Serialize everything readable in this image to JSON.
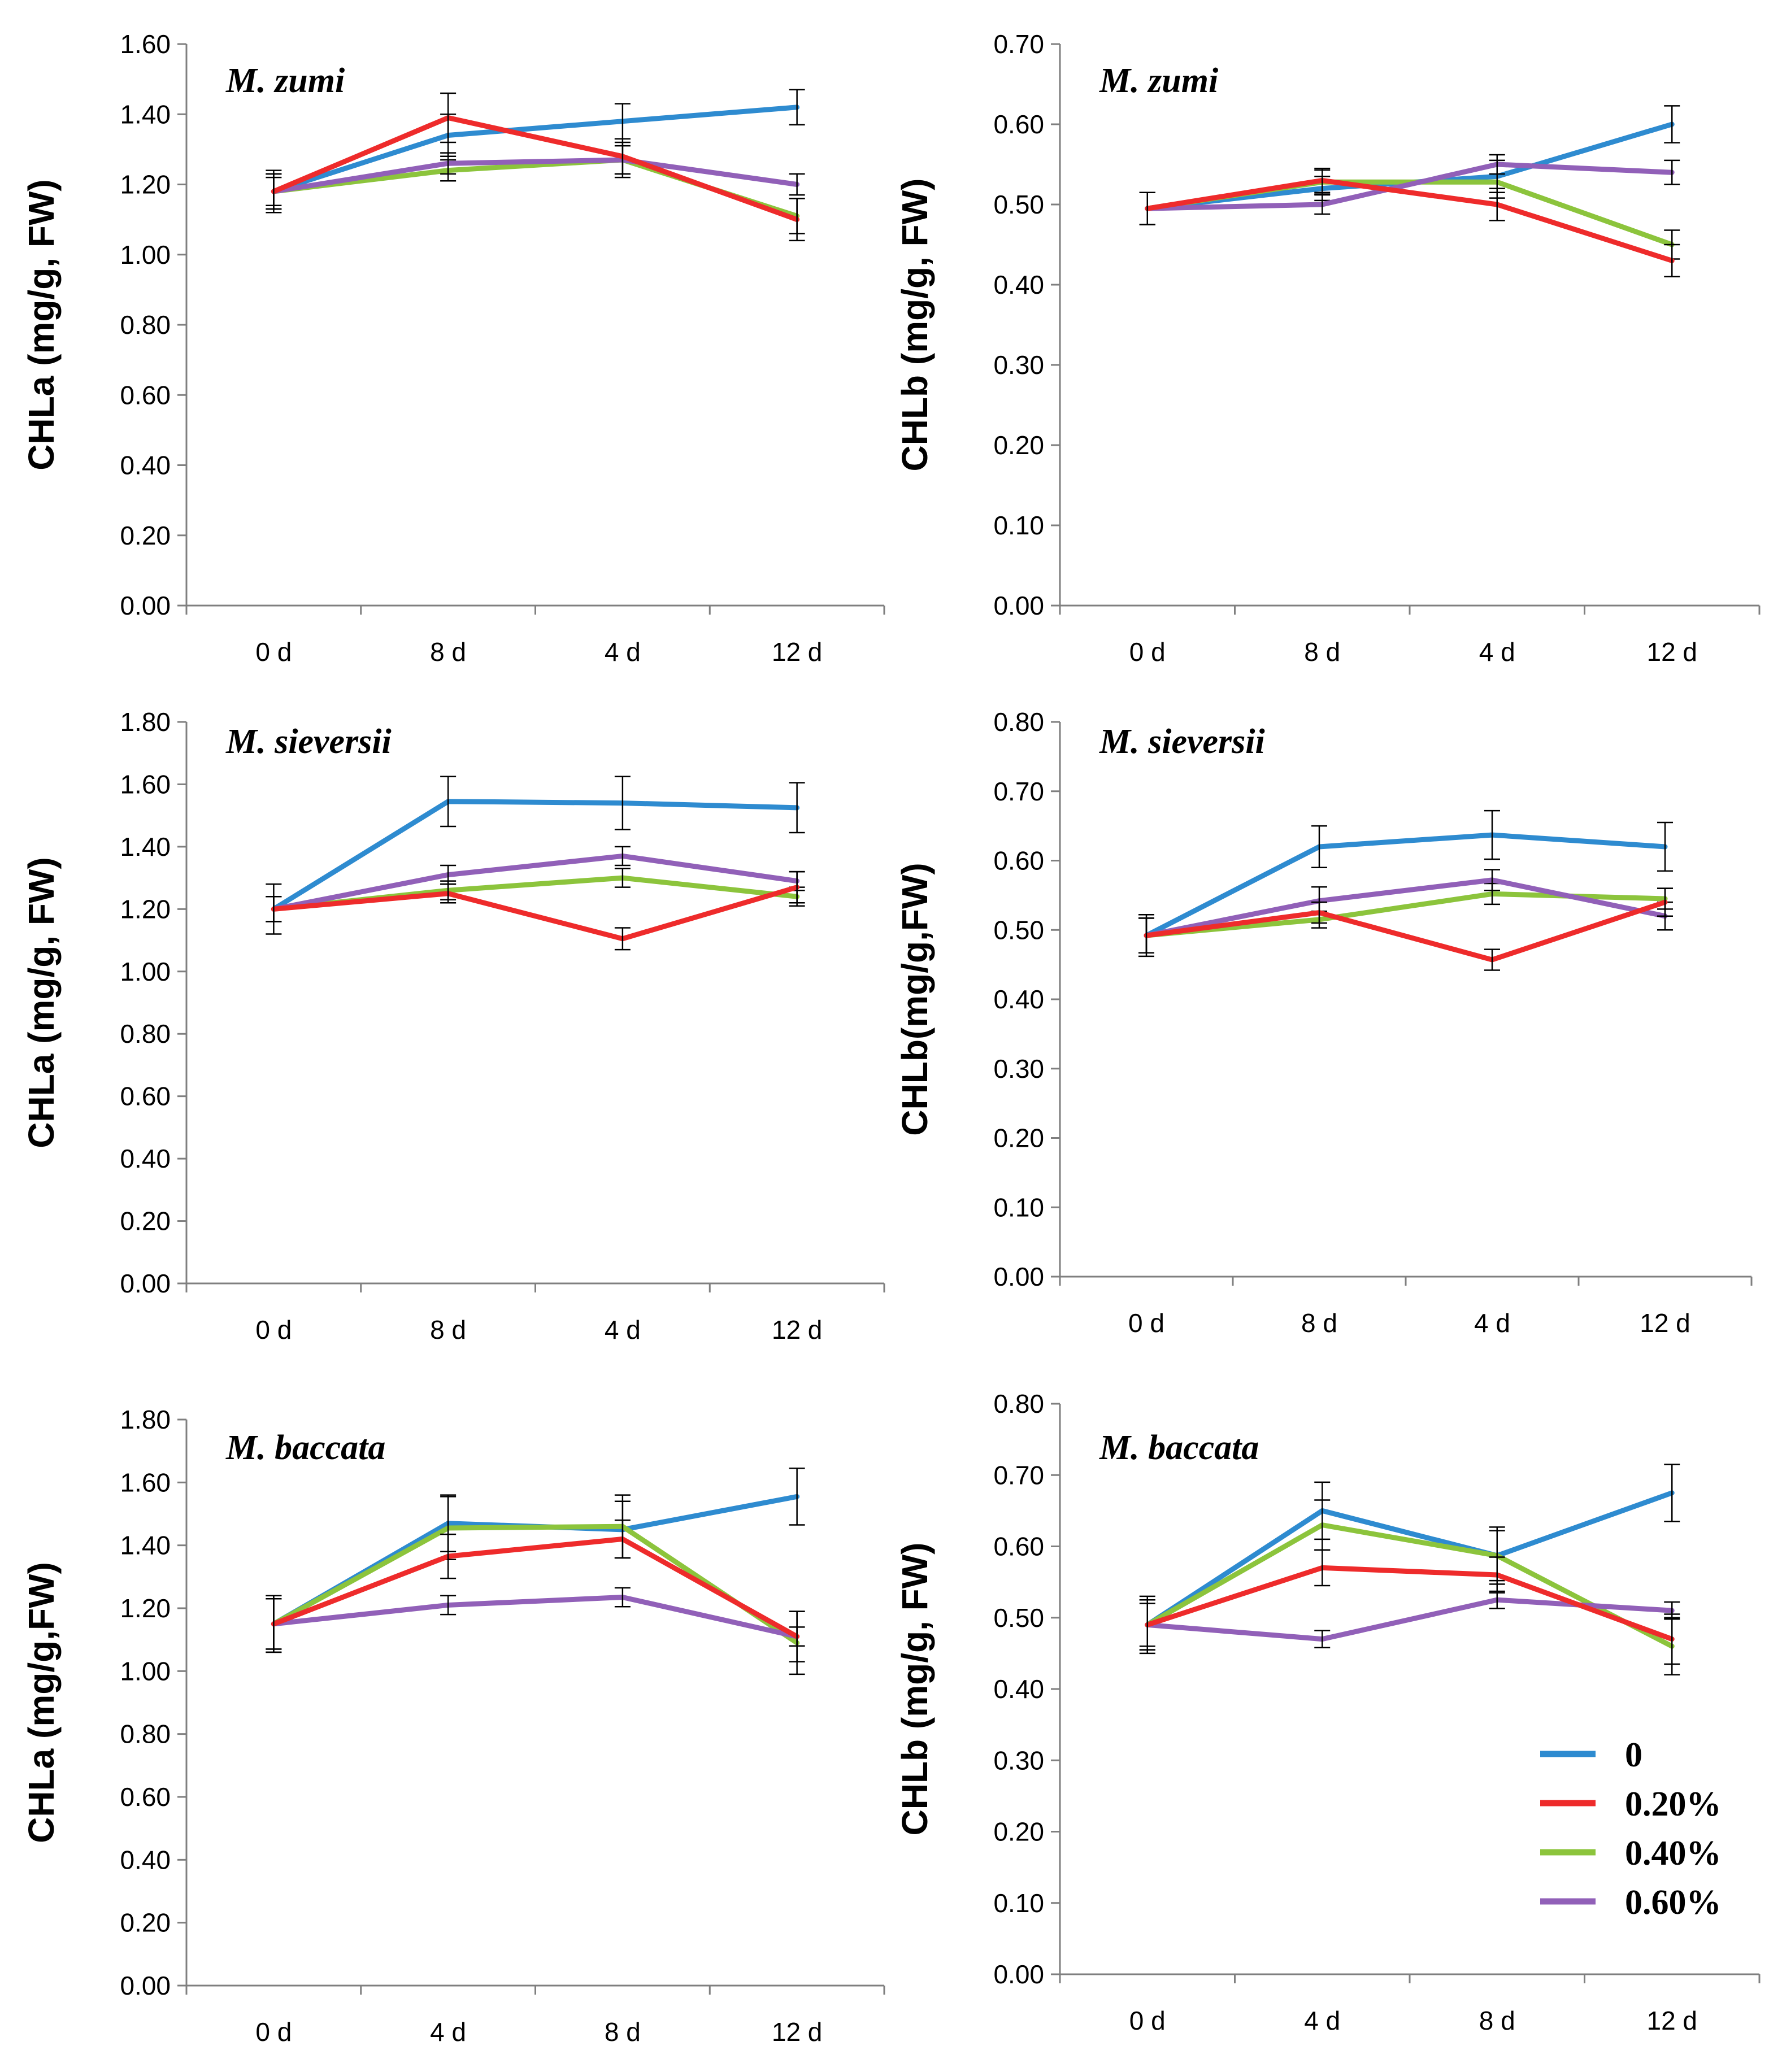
{
  "legend": {
    "location": "bottom-right of M. baccata CHLb panel",
    "entries": [
      {
        "label": "0",
        "color": "#2e8bd0"
      },
      {
        "label": "0.20%",
        "color": "#ee2b2b"
      },
      {
        "label": "0.40%",
        "color": "#8cc43c"
      },
      {
        "label": "0.60%",
        "color": "#9160b8"
      }
    ]
  },
  "chart_data": [
    {
      "type": "line",
      "title": "M. zumi",
      "ylabel": "CHLa (mg/g, FW)",
      "xlabel": "",
      "categories": [
        "0 d",
        "8 d",
        "4 d",
        "12 d"
      ],
      "ylim": [
        0,
        1.6
      ],
      "ytick_step": 0.2,
      "series": [
        {
          "name": "0",
          "values": [
            1.18,
            1.34,
            1.38,
            1.42
          ],
          "errors": [
            0.06,
            0.06,
            0.05,
            0.05
          ]
        },
        {
          "name": "0.20%",
          "values": [
            1.18,
            1.39,
            1.28,
            1.1
          ],
          "errors": [
            0.05,
            0.07,
            0.05,
            0.06
          ]
        },
        {
          "name": "0.40%",
          "values": [
            1.18,
            1.24,
            1.27,
            1.11
          ],
          "errors": [
            0.05,
            0.03,
            0.05,
            0.05
          ]
        },
        {
          "name": "0.60%",
          "values": [
            1.18,
            1.26,
            1.27,
            1.2
          ],
          "errors": [
            0.04,
            0.03,
            0.04,
            0.03
          ]
        }
      ]
    },
    {
      "type": "line",
      "title": "M. zumi",
      "ylabel": "CHLb (mg/g, FW)",
      "xlabel": "",
      "categories": [
        "0 d",
        "8 d",
        "4 d",
        "12 d"
      ],
      "ylim": [
        0,
        0.7
      ],
      "ytick_step": 0.1,
      "series": [
        {
          "name": "0",
          "values": [
            0.495,
            0.52,
            0.535,
            0.6
          ],
          "errors": [
            0.02,
            0.015,
            0.02,
            0.023
          ]
        },
        {
          "name": "0.20%",
          "values": [
            0.495,
            0.53,
            0.5,
            0.43
          ],
          "errors": [
            0.02,
            0.015,
            0.02,
            0.02
          ]
        },
        {
          "name": "0.40%",
          "values": [
            0.495,
            0.528,
            0.528,
            0.45
          ],
          "errors": [
            0.02,
            0.015,
            0.02,
            0.018
          ]
        },
        {
          "name": "0.60%",
          "values": [
            0.495,
            0.5,
            0.55,
            0.54
          ],
          "errors": [
            0.02,
            0.012,
            0.012,
            0.015
          ]
        }
      ]
    },
    {
      "type": "line",
      "title": "M. sieversii",
      "ylabel": "CHLa (mg/g, FW)",
      "xlabel": "",
      "categories": [
        "0 d",
        "8 d",
        "4 d",
        "12 d"
      ],
      "ylim": [
        0,
        1.8
      ],
      "ytick_step": 0.2,
      "series": [
        {
          "name": "0",
          "values": [
            1.2,
            1.545,
            1.54,
            1.525
          ],
          "errors": [
            0.08,
            0.08,
            0.085,
            0.08
          ]
        },
        {
          "name": "0.20%",
          "values": [
            1.2,
            1.25,
            1.105,
            1.27
          ],
          "errors": [
            0.04,
            0.03,
            0.035,
            0.05
          ]
        },
        {
          "name": "0.40%",
          "values": [
            1.2,
            1.26,
            1.3,
            1.24
          ],
          "errors": [
            0.04,
            0.03,
            0.03,
            0.03
          ]
        },
        {
          "name": "0.60%",
          "values": [
            1.2,
            1.31,
            1.37,
            1.29
          ],
          "errors": [
            0.04,
            0.03,
            0.03,
            0.03
          ]
        }
      ]
    },
    {
      "type": "line",
      "title": "M. sieversii",
      "ylabel": "CHLb(mg/g,FW)",
      "xlabel": "",
      "categories": [
        "0 d",
        "8 d",
        "4 d",
        "12 d"
      ],
      "ylim": [
        0,
        0.8
      ],
      "ytick_step": 0.1,
      "series": [
        {
          "name": "0",
          "values": [
            0.492,
            0.62,
            0.637,
            0.62
          ],
          "errors": [
            0.03,
            0.03,
            0.035,
            0.035
          ]
        },
        {
          "name": "0.20%",
          "values": [
            0.492,
            0.525,
            0.457,
            0.54
          ],
          "errors": [
            0.025,
            0.015,
            0.015,
            0.02
          ]
        },
        {
          "name": "0.40%",
          "values": [
            0.492,
            0.515,
            0.552,
            0.545
          ],
          "errors": [
            0.025,
            0.012,
            0.015,
            0.015
          ]
        },
        {
          "name": "0.60%",
          "values": [
            0.492,
            0.542,
            0.572,
            0.52
          ],
          "errors": [
            0.025,
            0.02,
            0.015,
            0.02
          ]
        }
      ]
    },
    {
      "type": "line",
      "title": "M. baccata",
      "ylabel": "CHLa (mg/g,FW)",
      "xlabel": "",
      "categories": [
        "0 d",
        "4 d",
        "8 d",
        "12 d"
      ],
      "ylim": [
        0,
        1.8
      ],
      "ytick_step": 0.2,
      "series": [
        {
          "name": "0",
          "values": [
            1.15,
            1.47,
            1.45,
            1.555
          ],
          "errors": [
            0.09,
            0.09,
            0.09,
            0.09
          ]
        },
        {
          "name": "0.20%",
          "values": [
            1.15,
            1.365,
            1.42,
            1.11
          ],
          "errors": [
            0.08,
            0.07,
            0.06,
            0.08
          ]
        },
        {
          "name": "0.40%",
          "values": [
            1.15,
            1.455,
            1.46,
            1.09
          ],
          "errors": [
            0.09,
            0.1,
            0.1,
            0.1
          ]
        },
        {
          "name": "0.60%",
          "values": [
            1.15,
            1.21,
            1.235,
            1.11
          ],
          "errors": [
            0.08,
            0.03,
            0.03,
            0.03
          ]
        }
      ]
    },
    {
      "type": "line",
      "title": "M. baccata",
      "ylabel": "CHLb (mg/g, FW)",
      "xlabel": "",
      "categories": [
        "0 d",
        "4 d",
        "8 d",
        "12 d"
      ],
      "ylim": [
        0,
        0.8
      ],
      "ytick_step": 0.1,
      "series": [
        {
          "name": "0",
          "values": [
            0.49,
            0.65,
            0.587,
            0.675
          ],
          "errors": [
            0.04,
            0.04,
            0.04,
            0.04
          ]
        },
        {
          "name": "0.20%",
          "values": [
            0.49,
            0.57,
            0.56,
            0.47
          ],
          "errors": [
            0.035,
            0.025,
            0.025,
            0.035
          ]
        },
        {
          "name": "0.40%",
          "values": [
            0.49,
            0.63,
            0.587,
            0.46
          ],
          "errors": [
            0.035,
            0.035,
            0.035,
            0.04
          ]
        },
        {
          "name": "0.60%",
          "values": [
            0.49,
            0.47,
            0.525,
            0.51
          ],
          "errors": [
            0.03,
            0.012,
            0.012,
            0.012
          ]
        }
      ]
    }
  ]
}
